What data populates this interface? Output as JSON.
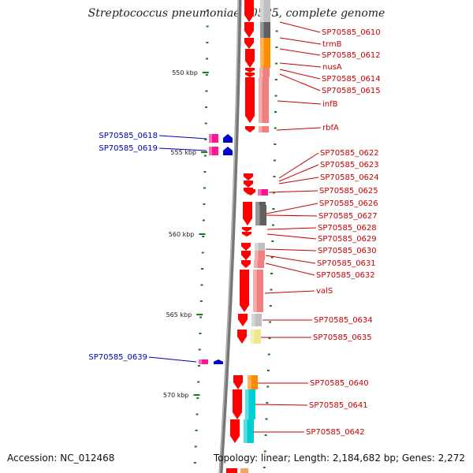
{
  "title": "Streptococcus pneumoniae 70585, complete genome",
  "footer": {
    "accession": "Accession: NC_012468",
    "topology": "Topology: linear; Length: 2,184,682 bp; Genes: 2,272"
  },
  "colors": {
    "backbone": "#777777",
    "gene_arrow": "#ff0000",
    "reverse_gene": "#0000cc",
    "reverse_cds": "#ff1493",
    "tick": "#1a7a1a",
    "label_forward": "#c80000",
    "label_reverse": "#0000b4"
  },
  "scale": [
    {
      "label": "550 kbp",
      "kbp": 550
    },
    {
      "label": "555 kbp",
      "kbp": 555
    },
    {
      "label": "560 kbp",
      "kbp": 560
    },
    {
      "label": "565 kbp",
      "kbp": 565
    },
    {
      "label": "570 kbp",
      "kbp": 570
    }
  ],
  "forward_genes": [
    {
      "name": "SP70585_0610",
      "cog": "#c0c0c0"
    },
    {
      "name": "trmB",
      "cog": "#606060"
    },
    {
      "name": "SP70585_0612",
      "cog": "#ff8c00"
    },
    {
      "name": "nusA",
      "cog": "#ff8c00"
    },
    {
      "name": "SP70585_0614",
      "cog": "#f08080"
    },
    {
      "name": "SP70585_0615",
      "cog": "#f08080"
    },
    {
      "name": "infB",
      "cog": "#f08080"
    },
    {
      "name": "rbfA",
      "cog": "#f08080"
    },
    {
      "name": "SP70585_0622",
      "cog": ""
    },
    {
      "name": "SP70585_0623",
      "cog": ""
    },
    {
      "name": "SP70585_0624",
      "cog": ""
    },
    {
      "name": "SP70585_0625",
      "cog": "#ff1493"
    },
    {
      "name": "SP70585_0626",
      "cog": "#606060"
    },
    {
      "name": "SP70585_0627",
      "cog": "#606060"
    },
    {
      "name": "SP70585_0628",
      "cog": ""
    },
    {
      "name": "SP70585_0629",
      "cog": ""
    },
    {
      "name": "SP70585_0630",
      "cog": "#c0c0c0"
    },
    {
      "name": "SP70585_0631",
      "cog": "#f08080"
    },
    {
      "name": "SP70585_0632",
      "cog": "#f08080"
    },
    {
      "name": "valS",
      "cog": "#f08080"
    },
    {
      "name": "SP70585_0634",
      "cog": "#c0c0c0"
    },
    {
      "name": "SP70585_0635",
      "cog": "#f0e68c"
    },
    {
      "name": "SP70585_0640",
      "cog": "#ff8c00"
    },
    {
      "name": "SP70585_0641",
      "cog": "#00ced1"
    },
    {
      "name": "SP70585_0642",
      "cog": "#00ced1"
    }
  ],
  "reverse_genes": [
    {
      "name": "SP70585_0618",
      "cog": "#ff1493"
    },
    {
      "name": "SP70585_0619",
      "cog": "#ff1493"
    },
    {
      "name": "SP70585_0639",
      "cog": "#ff1493"
    }
  ]
}
